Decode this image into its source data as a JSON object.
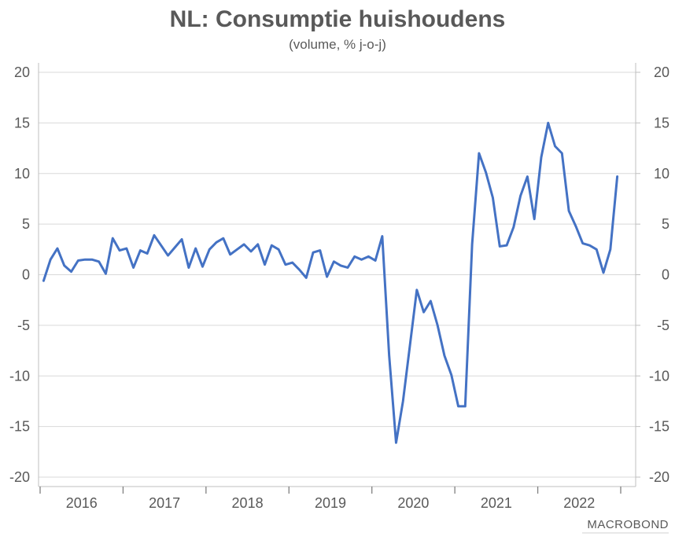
{
  "chart_data": {
    "type": "line",
    "title": "NL: Consumptie huishoudens",
    "subtitle": "(volume, % j-o-j)",
    "xlabel": "",
    "ylabel": "",
    "ylim": [
      -20,
      20
    ],
    "y_ticks": [
      "20",
      "15",
      "10",
      "5",
      "0",
      "-5",
      "-10",
      "-15",
      "-20"
    ],
    "x_tick_labels": [
      "2016",
      "2017",
      "2018",
      "2019",
      "2020",
      "2021",
      "2022"
    ],
    "xlim": [
      "2016-01",
      "2022-12"
    ],
    "grid": true,
    "legend": "none",
    "line_color": "#4472c4",
    "series": [
      {
        "x": [
          "2016-01",
          "2016-02",
          "2016-03",
          "2016-04",
          "2016-05",
          "2016-06",
          "2016-07",
          "2016-08",
          "2016-09",
          "2016-10",
          "2016-11",
          "2016-12",
          "2017-01",
          "2017-02",
          "2017-03",
          "2017-04",
          "2017-05",
          "2017-06",
          "2017-07",
          "2017-08",
          "2017-09",
          "2017-10",
          "2017-11",
          "2017-12",
          "2018-01",
          "2018-02",
          "2018-03",
          "2018-04",
          "2018-05",
          "2018-06",
          "2018-07",
          "2018-08",
          "2018-09",
          "2018-10",
          "2018-11",
          "2018-12",
          "2019-01",
          "2019-02",
          "2019-03",
          "2019-04",
          "2019-05",
          "2019-06",
          "2019-07",
          "2019-08",
          "2019-09",
          "2019-10",
          "2019-11",
          "2019-12",
          "2020-01",
          "2020-02",
          "2020-03",
          "2020-04",
          "2020-05",
          "2020-06",
          "2020-07",
          "2020-08",
          "2020-09",
          "2020-10",
          "2020-11",
          "2020-12",
          "2021-01",
          "2021-02",
          "2021-03",
          "2021-04",
          "2021-05",
          "2021-06",
          "2021-07",
          "2021-08",
          "2021-09",
          "2021-10",
          "2021-11",
          "2021-12",
          "2022-01",
          "2022-02",
          "2022-03",
          "2022-04",
          "2022-05",
          "2022-06",
          "2022-07",
          "2022-08",
          "2022-09",
          "2022-10",
          "2022-11",
          "2022-12"
        ],
        "values": [
          -0.6,
          1.5,
          2.6,
          0.9,
          0.3,
          1.4,
          1.5,
          1.5,
          1.3,
          0.1,
          3.6,
          2.4,
          2.6,
          0.7,
          2.4,
          2.1,
          3.9,
          2.9,
          1.9,
          2.7,
          3.5,
          0.7,
          2.6,
          0.8,
          2.5,
          3.2,
          3.6,
          2.0,
          2.5,
          3.0,
          2.3,
          3.0,
          1.0,
          2.9,
          2.5,
          1.0,
          1.2,
          0.5,
          -0.3,
          2.2,
          2.4,
          -0.2,
          1.3,
          0.9,
          0.7,
          1.8,
          1.5,
          1.8,
          1.4,
          3.8,
          -8.0,
          -16.6,
          -12.5,
          -7.0,
          -1.5,
          -3.7,
          -2.6,
          -5.0,
          -8.0,
          -9.9,
          -13.0,
          -13.0,
          3.0,
          12.0,
          10.1,
          7.6,
          2.8,
          2.9,
          4.7,
          7.8,
          9.7,
          5.5,
          11.6,
          15.0,
          12.7,
          12.0,
          6.3,
          4.8,
          3.1,
          2.9,
          2.5,
          0.2,
          2.5,
          9.7
        ]
      }
    ]
  },
  "logo": "MACROBOND"
}
